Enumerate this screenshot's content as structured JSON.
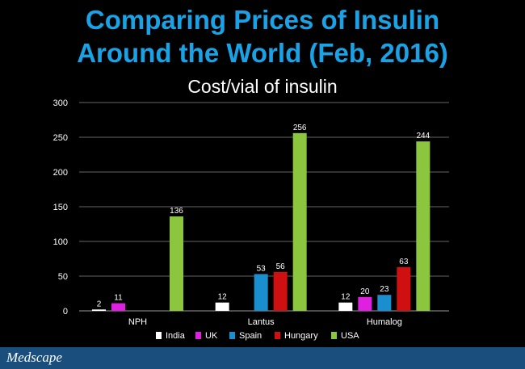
{
  "page": {
    "title_line1": "Comparing Prices of Insulin",
    "title_line2": "Around the World (Feb, 2016)",
    "subtitle": "Cost/vial of insulin",
    "footer_logo": "Medscape"
  },
  "colors": {
    "title": "#19a3e6",
    "India": "#ffffff",
    "UK": "#e020e0",
    "Spain": "#1a8fd0",
    "Hungary": "#d01010",
    "USA": "#8cc63e"
  },
  "chart_data": {
    "type": "bar",
    "title": "Cost/vial of insulin",
    "categories": [
      "NPH",
      "Lantus",
      "Humalog"
    ],
    "series": [
      {
        "name": "India",
        "values": [
          2,
          12,
          12
        ]
      },
      {
        "name": "UK",
        "values": [
          11,
          null,
          20
        ]
      },
      {
        "name": "Spain",
        "values": [
          null,
          53,
          23
        ]
      },
      {
        "name": "Hungary",
        "values": [
          null,
          56,
          63
        ]
      },
      {
        "name": "USA",
        "values": [
          136,
          256,
          244
        ]
      }
    ],
    "ylim": [
      0,
      300
    ],
    "yticks": [
      0,
      50,
      100,
      150,
      200,
      250,
      300
    ],
    "grid": true,
    "legend": "bottom"
  }
}
